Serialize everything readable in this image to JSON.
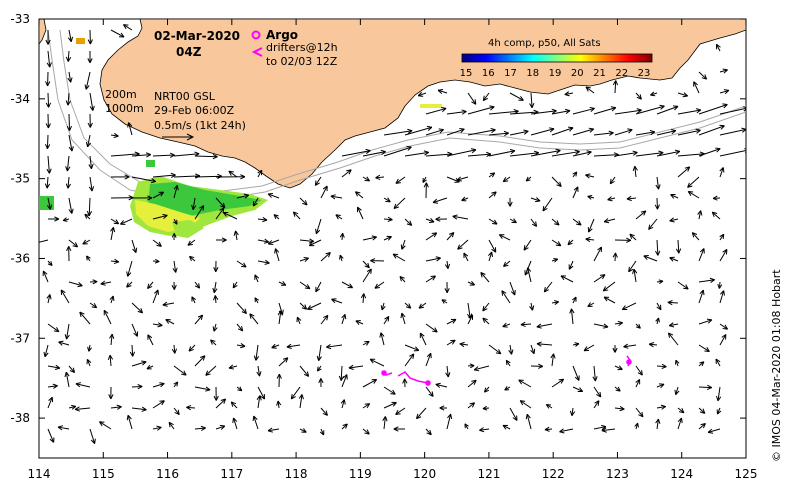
{
  "header": {
    "date": "02-Mar-2020",
    "time": "04Z"
  },
  "legend": {
    "argo_label": "Argo",
    "drifters_line1": "drifters@12h",
    "drifters_line2": "to 02/03 12Z",
    "argo_color": "#ff00ff",
    "drifter_color": "#ff00ff"
  },
  "contours": {
    "label_200": "200m",
    "label_1000": "1000m"
  },
  "product": {
    "line1": "NRT00 GSL",
    "line2": "29-Feb 06:00Z",
    "scale_label": "0.5m/s (1kt 24h)"
  },
  "colorbar": {
    "title": "4h comp, p50, All Sats",
    "ticks": [
      "15",
      "16",
      "17",
      "18",
      "19",
      "20",
      "21",
      "22",
      "23"
    ],
    "colors": [
      "#00007f",
      "#0000ff",
      "#007fff",
      "#00ffff",
      "#7fff7f",
      "#ffff00",
      "#ff7f00",
      "#ff0000",
      "#7f0000"
    ]
  },
  "axes": {
    "x_ticks": [
      "114",
      "115",
      "116",
      "117",
      "118",
      "119",
      "120",
      "121",
      "122",
      "123",
      "124",
      "125"
    ],
    "y_ticks": [
      "-33",
      "-34",
      "-35",
      "-36",
      "-37",
      "-38"
    ],
    "lon_range": [
      114,
      125
    ],
    "lat_range": [
      -38.5,
      -33
    ]
  },
  "credit": "© IMOS 04-Mar-2020 01:08 Hobart",
  "colors": {
    "land": "#f8c89c",
    "coast": "#000000",
    "isobath": "#a8a8a8",
    "sst_green": "#3cc83c",
    "sst_lime": "#a0e63c",
    "sst_yellow": "#e6f03c",
    "sst_orange": "#e6a000"
  }
}
